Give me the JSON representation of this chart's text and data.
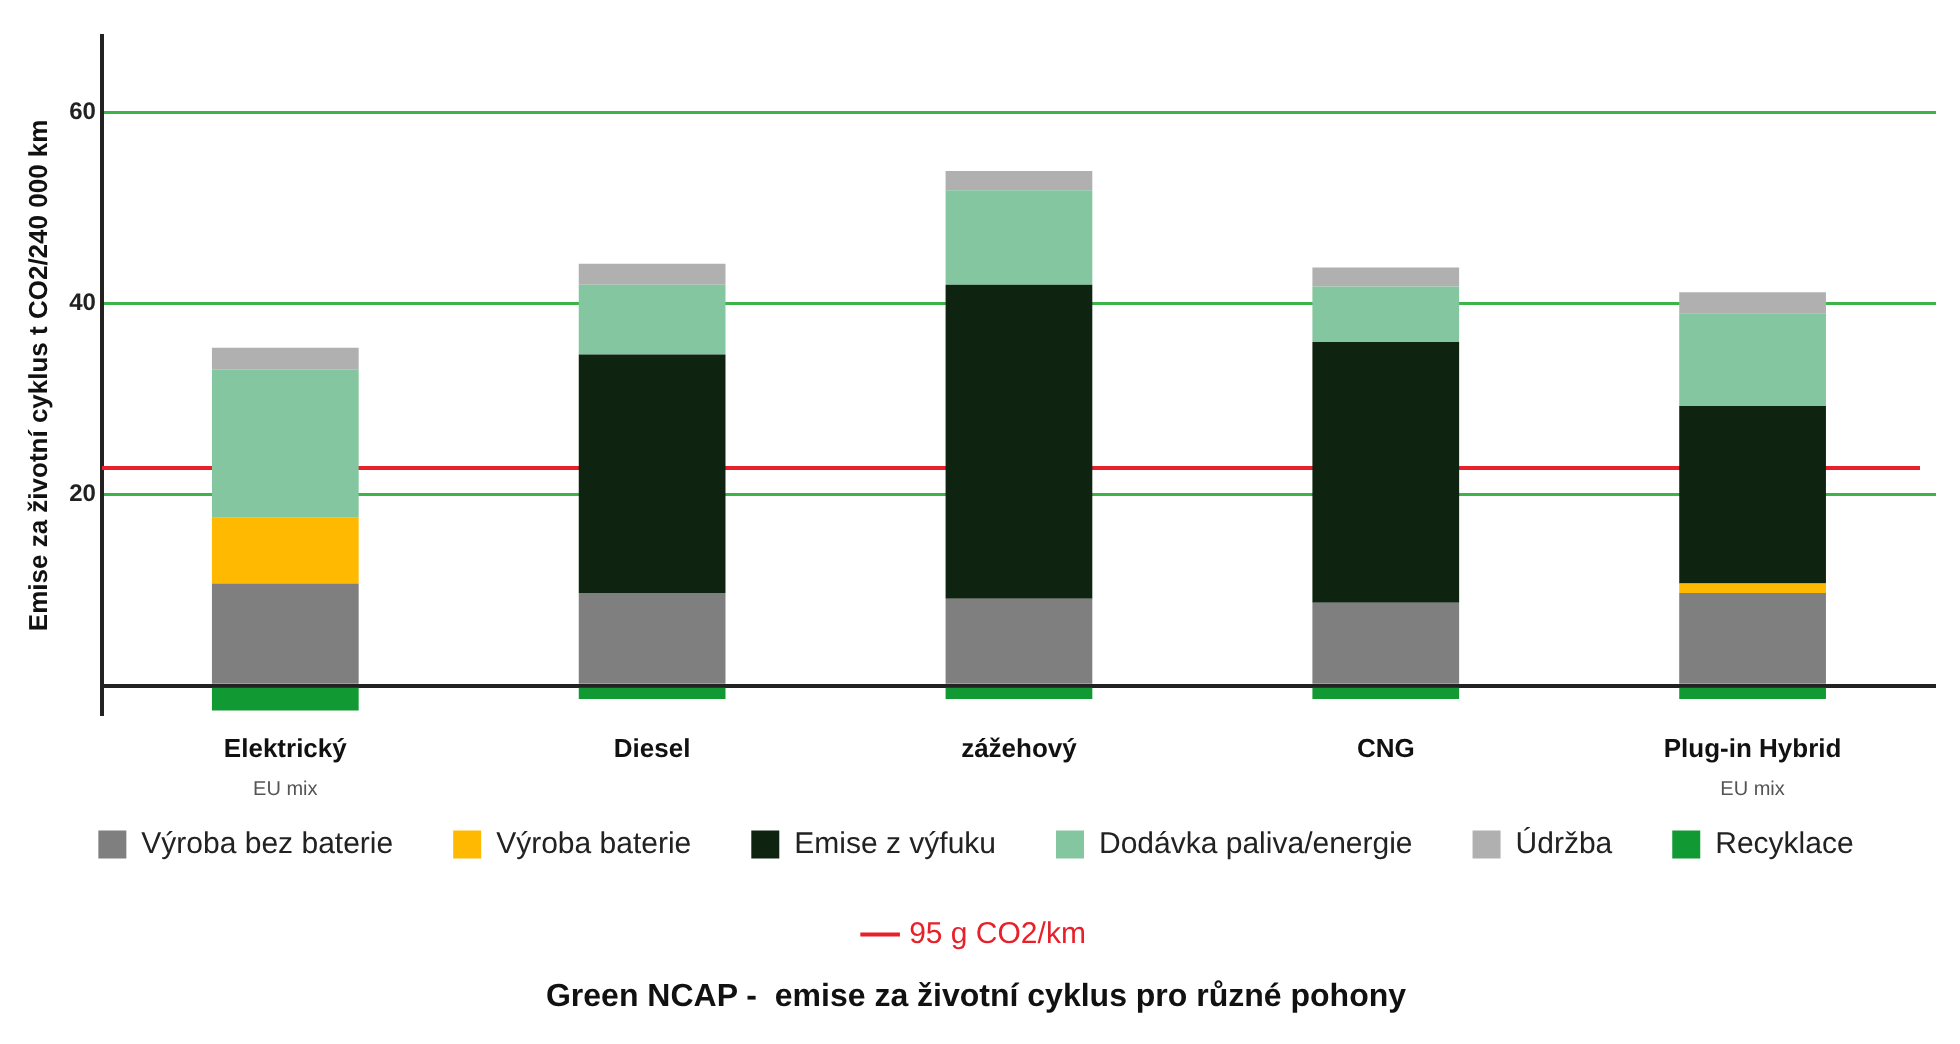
{
  "chart_data": {
    "type": "bar",
    "title": "Green NCAP -  emise za životní cyklus pro různé pohony",
    "ylabel": "Emise za životní cyklus t CO2/240 000 km",
    "categories": [
      "Elektrický",
      "Diesel",
      "zážehový",
      "CNG",
      "Plug-in Hybrid"
    ],
    "stacked": true,
    "series": [
      {
        "name": "Výroba bez baterie",
        "color": "#7f7f7f",
        "values": [
          10.7,
          9.7,
          9.1,
          8.7,
          9.7
        ]
      },
      {
        "name": "Výroba baterie",
        "color": "#ffb900",
        "values": [
          6.9,
          null,
          null,
          null,
          1.0
        ]
      },
      {
        "name": "Emise z výfuku",
        "color": "#0f2410",
        "values": [
          null,
          25,
          32.9,
          27.3,
          18.6
        ]
      },
      {
        "name": "Dodávka paliva/energie",
        "color": "#84c6a0",
        "values": [
          15.5,
          7.3,
          9.9,
          5.8,
          9.7
        ]
      },
      {
        "name": "Údržba",
        "color": "#b0b0b0",
        "values": [
          2.3,
          2.2,
          2.0,
          2.0,
          2.2
        ]
      },
      {
        "name": "Recyklace",
        "color": "#119a33",
        "values": [
          -2.6,
          -1.4,
          -1.4,
          -1.4,
          -1.4
        ]
      }
    ],
    "ylim": [
      -3,
      68
    ],
    "yticks": [
      {
        "value": 0,
        "label": null
      },
      20,
      40,
      60
    ],
    "grid": "y",
    "legend": "bottom",
    "ref_lines": [
      {
        "axis": "y",
        "value": 22.8,
        "label": "95 g CO2/km",
        "color": "#e8202a"
      }
    ],
    "annotations": [
      "EU mix",
      "EU mix"
    ]
  }
}
